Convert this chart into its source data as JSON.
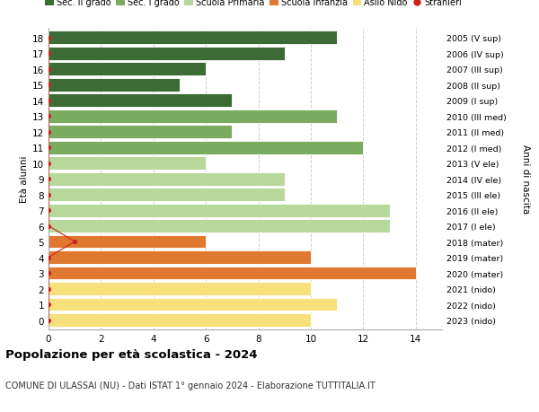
{
  "ages": [
    18,
    17,
    16,
    15,
    14,
    13,
    12,
    11,
    10,
    9,
    8,
    7,
    6,
    5,
    4,
    3,
    2,
    1,
    0
  ],
  "right_labels": [
    "2005 (V sup)",
    "2006 (IV sup)",
    "2007 (III sup)",
    "2008 (II sup)",
    "2009 (I sup)",
    "2010 (III med)",
    "2011 (II med)",
    "2012 (I med)",
    "2013 (V ele)",
    "2014 (IV ele)",
    "2015 (III ele)",
    "2016 (II ele)",
    "2017 (I ele)",
    "2018 (mater)",
    "2019 (mater)",
    "2020 (mater)",
    "2021 (nido)",
    "2022 (nido)",
    "2023 (nido)"
  ],
  "bar_values": [
    11,
    9,
    6,
    5,
    7,
    11,
    7,
    12,
    6,
    9,
    9,
    13,
    13,
    6,
    10,
    14,
    10,
    11,
    10
  ],
  "bar_colors": [
    "#3d6b35",
    "#3d6b35",
    "#3d6b35",
    "#3d6b35",
    "#3d6b35",
    "#7aab5e",
    "#7aab5e",
    "#7aab5e",
    "#b8d79a",
    "#b8d79a",
    "#b8d79a",
    "#b8d79a",
    "#b8d79a",
    "#e07830",
    "#e07830",
    "#e07830",
    "#f5e07a",
    "#f5e07a",
    "#f5e07a"
  ],
  "stranieri_x": [
    0,
    0,
    0,
    0,
    0,
    0,
    0,
    0,
    0,
    0,
    0,
    0,
    0,
    1,
    0,
    0,
    0,
    0,
    0
  ],
  "legend_labels": [
    "Sec. II grado",
    "Sec. I grado",
    "Scuola Primaria",
    "Scuola Infanzia",
    "Asilo Nido",
    "Stranieri"
  ],
  "legend_colors": [
    "#3d6b35",
    "#7aab5e",
    "#b8d79a",
    "#e07830",
    "#f5e07a",
    "#cc2222"
  ],
  "title": "Popolazione per età scolastica - 2024",
  "subtitle": "COMUNE DI ULASSAI (NU) - Dati ISTAT 1° gennaio 2024 - Elaborazione TUTTITALIA.IT",
  "ylabel": "Età alunni",
  "right_ylabel": "Anni di nascita",
  "xlim": [
    0,
    15
  ],
  "xticks": [
    0,
    2,
    4,
    6,
    8,
    10,
    12,
    14
  ],
  "background_color": "#ffffff",
  "grid_color": "#cccccc",
  "stranieri_color": "#cc2222"
}
